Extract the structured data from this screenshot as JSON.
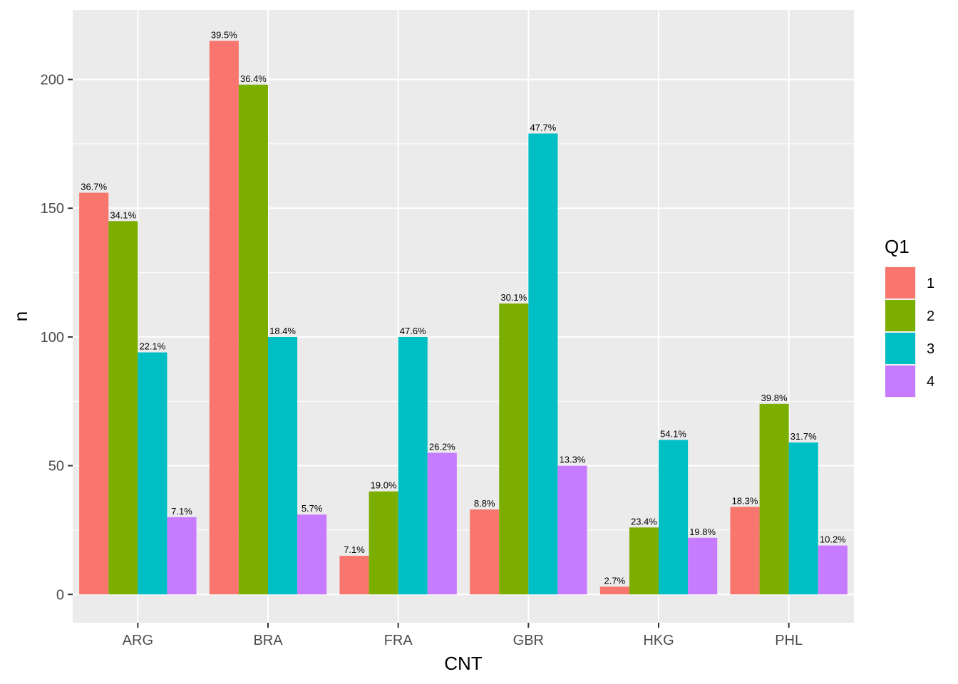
{
  "chart_data": {
    "type": "bar",
    "xlabel": "CNT",
    "ylabel": "n",
    "ylim": [
      -11,
      227
    ],
    "yticks": [
      0,
      50,
      100,
      150,
      200
    ],
    "categories": [
      "ARG",
      "BRA",
      "FRA",
      "GBR",
      "HKG",
      "PHL"
    ],
    "legend": {
      "title": "Q1",
      "position": "right"
    },
    "grid": true,
    "series": [
      {
        "name": "1",
        "color": "#F8766D",
        "values": [
          156,
          215,
          15,
          33,
          3,
          34
        ],
        "labels": [
          "36.7%",
          "39.5%",
          "7.1%",
          "8.8%",
          "2.7%",
          "18.3%"
        ]
      },
      {
        "name": "2",
        "color": "#7CAE00",
        "values": [
          145,
          198,
          40,
          113,
          26,
          74
        ],
        "labels": [
          "34.1%",
          "36.4%",
          "19.0%",
          "30.1%",
          "23.4%",
          "39.8%"
        ]
      },
      {
        "name": "3",
        "color": "#00BFC4",
        "values": [
          94,
          100,
          100,
          179,
          60,
          59
        ],
        "labels": [
          "22.1%",
          "18.4%",
          "47.6%",
          "47.7%",
          "54.1%",
          "31.7%"
        ]
      },
      {
        "name": "4",
        "color": "#C77CFF",
        "values": [
          30,
          31,
          55,
          50,
          22,
          19
        ],
        "labels": [
          "7.1%",
          "5.7%",
          "26.2%",
          "13.3%",
          "19.8%",
          "10.2%"
        ]
      }
    ]
  }
}
